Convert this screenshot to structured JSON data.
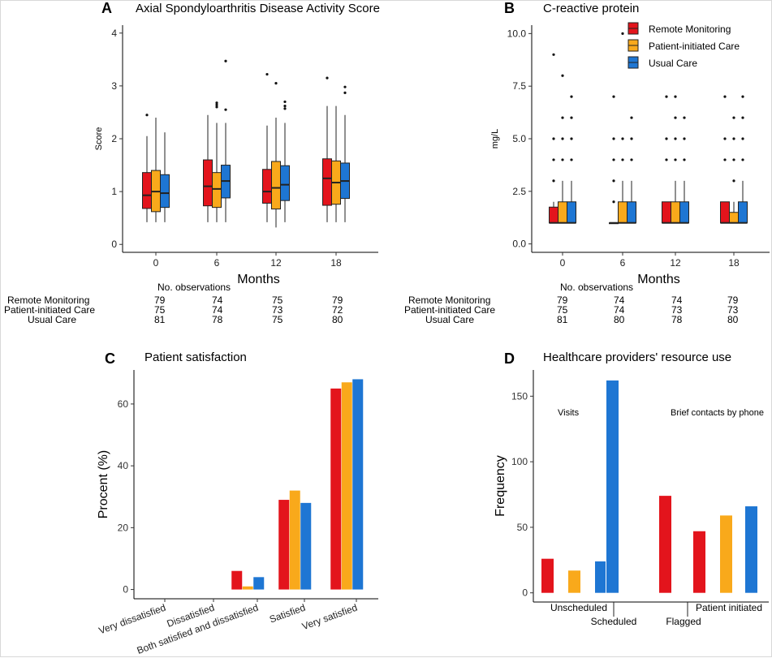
{
  "colors": {
    "remote": "#E3141C",
    "patient": "#F9A91B",
    "usual": "#1E76D3"
  },
  "panels": {
    "A": {
      "letter": "A",
      "title": "Axial Spondyloarthritis Disease Activity Score"
    },
    "B": {
      "letter": "B",
      "title": "C-reactive protein"
    },
    "C": {
      "letter": "C",
      "title": "Patient satisfaction"
    },
    "D": {
      "letter": "D",
      "title": "Healthcare providers' resource use"
    }
  },
  "legend": [
    "Remote Monitoring",
    "Patient-initiated Care",
    "Usual Care"
  ],
  "observations": {
    "header": "No. observations",
    "A": {
      "groups": [
        "Remote Monitoring",
        "Patient-initiated Care",
        "Usual Care"
      ],
      "counts": [
        [
          "79",
          "74",
          "75",
          "79"
        ],
        [
          "75",
          "74",
          "73",
          "72"
        ],
        [
          "81",
          "78",
          "75",
          "80"
        ]
      ]
    },
    "B": {
      "groups": [
        "Remote Monitoring",
        "Patient-initiated Care",
        "Usual Care"
      ],
      "counts": [
        [
          "79",
          "74",
          "74",
          "79"
        ],
        [
          "75",
          "74",
          "73",
          "73"
        ],
        [
          "81",
          "80",
          "78",
          "80"
        ]
      ]
    }
  },
  "chart_data": [
    {
      "type": "box",
      "panel": "A",
      "title": "Axial Spondyloarthritis Disease Activity Score",
      "xlabel": "Months",
      "ylabel": "Score",
      "categories": [
        "0",
        "6",
        "12",
        "18"
      ],
      "yticks": [
        "0",
        "1",
        "2",
        "3",
        "4"
      ],
      "ylim": [
        -0.15,
        4.15
      ],
      "series": [
        {
          "name": "Remote Monitoring",
          "boxes": [
            {
              "q1": 0.68,
              "median": 0.93,
              "q3": 1.36,
              "lo": 0.42,
              "hi": 2.05,
              "out": [
                2.45
              ]
            },
            {
              "q1": 0.73,
              "median": 1.1,
              "q3": 1.6,
              "lo": 0.42,
              "hi": 2.45,
              "out": []
            },
            {
              "q1": 0.78,
              "median": 1.0,
              "q3": 1.42,
              "lo": 0.42,
              "hi": 2.25,
              "out": [
                3.22
              ]
            },
            {
              "q1": 0.74,
              "median": 1.25,
              "q3": 1.62,
              "lo": 0.42,
              "hi": 2.62,
              "out": [
                3.15
              ]
            }
          ]
        },
        {
          "name": "Patient-initiated Care",
          "boxes": [
            {
              "q1": 0.62,
              "median": 1.0,
              "q3": 1.4,
              "lo": 0.42,
              "hi": 2.4,
              "out": []
            },
            {
              "q1": 0.7,
              "median": 1.05,
              "q3": 1.36,
              "lo": 0.42,
              "hi": 2.3,
              "out": [
                2.6,
                2.64,
                2.68
              ]
            },
            {
              "q1": 0.67,
              "median": 1.07,
              "q3": 1.57,
              "lo": 0.32,
              "hi": 2.4,
              "out": [
                3.05
              ]
            },
            {
              "q1": 0.76,
              "median": 1.17,
              "q3": 1.58,
              "lo": 0.42,
              "hi": 2.62,
              "out": []
            }
          ]
        },
        {
          "name": "Usual Care",
          "boxes": [
            {
              "q1": 0.7,
              "median": 0.97,
              "q3": 1.32,
              "lo": 0.42,
              "hi": 2.12,
              "out": []
            },
            {
              "q1": 0.88,
              "median": 1.2,
              "q3": 1.5,
              "lo": 0.42,
              "hi": 2.3,
              "out": [
                2.55,
                3.47
              ]
            },
            {
              "q1": 0.83,
              "median": 1.13,
              "q3": 1.49,
              "lo": 0.42,
              "hi": 2.3,
              "out": [
                2.57,
                2.62,
                2.7
              ]
            },
            {
              "q1": 0.87,
              "median": 1.2,
              "q3": 1.54,
              "lo": 0.42,
              "hi": 2.45,
              "out": [
                2.87,
                2.98
              ]
            }
          ]
        }
      ]
    },
    {
      "type": "box",
      "panel": "B",
      "title": "C-reactive protein",
      "xlabel": "Months",
      "ylabel": "mg/L",
      "categories": [
        "0",
        "6",
        "12",
        "18"
      ],
      "yticks": [
        "0.0",
        "2.5",
        "5.0",
        "7.5",
        "10.0"
      ],
      "ylim": [
        -0.4,
        10.4
      ],
      "series": [
        {
          "name": "Remote Monitoring",
          "boxes": [
            {
              "q1": 1.0,
              "median": 1.0,
              "q3": 1.75,
              "lo": 1.0,
              "hi": 2.0,
              "out": [
                3,
                4,
                5,
                9
              ]
            },
            {
              "q1": 1.0,
              "median": 1.0,
              "q3": 1.0,
              "lo": 1.0,
              "hi": 1.0,
              "out": [
                2,
                3,
                4,
                5,
                7
              ]
            },
            {
              "q1": 1.0,
              "median": 1.0,
              "q3": 2.0,
              "lo": 1.0,
              "hi": 2.0,
              "out": [
                4,
                5,
                7
              ]
            },
            {
              "q1": 1.0,
              "median": 1.0,
              "q3": 2.0,
              "lo": 1.0,
              "hi": 2.0,
              "out": [
                4,
                5,
                7
              ]
            }
          ]
        },
        {
          "name": "Patient-initiated Care",
          "boxes": [
            {
              "q1": 1.0,
              "median": 1.0,
              "q3": 2.0,
              "lo": 1.0,
              "hi": 3.0,
              "out": [
                4,
                5,
                6,
                8
              ]
            },
            {
              "q1": 1.0,
              "median": 1.0,
              "q3": 2.0,
              "lo": 1.0,
              "hi": 3.0,
              "out": [
                4,
                5,
                10
              ]
            },
            {
              "q1": 1.0,
              "median": 1.0,
              "q3": 2.0,
              "lo": 1.0,
              "hi": 3.0,
              "out": [
                4,
                5,
                6,
                7
              ]
            },
            {
              "q1": 1.0,
              "median": 1.0,
              "q3": 1.5,
              "lo": 1.0,
              "hi": 2.0,
              "out": [
                3,
                4,
                5,
                6
              ]
            }
          ]
        },
        {
          "name": "Usual Care",
          "boxes": [
            {
              "q1": 1.0,
              "median": 1.0,
              "q3": 2.0,
              "lo": 1.0,
              "hi": 3.0,
              "out": [
                4,
                5,
                6,
                7
              ]
            },
            {
              "q1": 1.0,
              "median": 1.0,
              "q3": 2.0,
              "lo": 1.0,
              "hi": 3.0,
              "out": [
                4,
                5,
                6
              ]
            },
            {
              "q1": 1.0,
              "median": 1.0,
              "q3": 2.0,
              "lo": 1.0,
              "hi": 3.0,
              "out": [
                4,
                5,
                6
              ]
            },
            {
              "q1": 1.0,
              "median": 1.0,
              "q3": 2.0,
              "lo": 1.0,
              "hi": 3.0,
              "out": [
                4,
                5,
                6,
                7
              ]
            }
          ]
        }
      ]
    },
    {
      "type": "bar",
      "panel": "C",
      "title": "Patient satisfaction",
      "xlabel": "",
      "ylabel": "Procent (%)",
      "categories": [
        "Very dissatisfied",
        "Dissatisfied",
        "Both satisfied and dissatisfied",
        "Satisfied",
        "Very satisfied"
      ],
      "yticks": [
        "0",
        "20",
        "40",
        "60"
      ],
      "ylim": [
        -3,
        71
      ],
      "series": [
        {
          "name": "Remote Monitoring",
          "values": [
            0,
            0,
            6,
            29,
            65
          ]
        },
        {
          "name": "Patient-initiated Care",
          "values": [
            0,
            0,
            1,
            32,
            67
          ]
        },
        {
          "name": "Usual Care",
          "values": [
            0,
            0,
            4,
            28,
            68
          ]
        }
      ]
    },
    {
      "type": "bar",
      "panel": "D",
      "title": "Healthcare providers' resource use",
      "xlabel": "",
      "ylabel": "Frequency",
      "yticks": [
        "0",
        "50",
        "100",
        "150"
      ],
      "ylim": [
        -7,
        170
      ],
      "annotations": [
        "Visits",
        "Brief contacts by phone"
      ],
      "categories": [
        "Unscheduled",
        "Scheduled",
        "Flagged",
        "Patient initiated"
      ],
      "bars": [
        {
          "category": "Unscheduled",
          "group": "Remote Monitoring",
          "value": 26
        },
        {
          "category": "Unscheduled",
          "group": "Patient-initiated Care",
          "value": 17
        },
        {
          "category": "Unscheduled",
          "group": "Usual Care",
          "value": 24
        },
        {
          "category": "Scheduled",
          "group": "Usual Care",
          "value": 162
        },
        {
          "category": "Flagged",
          "group": "Remote Monitoring",
          "value": 74
        },
        {
          "category": "Patient initiated",
          "group": "Remote Monitoring",
          "value": 47
        },
        {
          "category": "Patient initiated",
          "group": "Patient-initiated Care",
          "value": 59
        },
        {
          "category": "Patient initiated",
          "group": "Usual Care",
          "value": 66
        }
      ]
    }
  ]
}
